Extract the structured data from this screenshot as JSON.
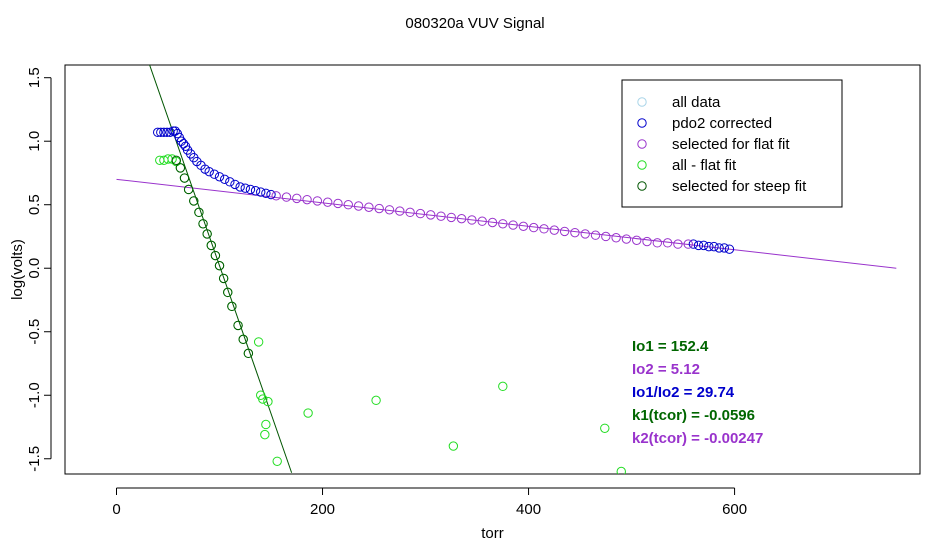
{
  "chart_data": {
    "type": "scatter",
    "title": "080320a   VUV Signal",
    "xlabel": "torr",
    "ylabel": "log(volts)",
    "xlim": [
      -50,
      780
    ],
    "ylim": [
      -1.62,
      1.6
    ],
    "xticks": [
      0,
      200,
      400,
      600
    ],
    "yticks": [
      -1.5,
      -1.0,
      -0.5,
      0.0,
      0.5,
      1.0,
      1.5
    ],
    "ytick_labels": [
      "-1.5",
      "-1.0",
      "-0.5",
      "0.0",
      "0.5",
      "1.0",
      "1.5"
    ],
    "legend_position": "top-right",
    "series": [
      {
        "name": "all data",
        "color": "#a8d4e8",
        "points": []
      },
      {
        "name": "pdo2 corrected",
        "color": "#0000cc",
        "points": [
          [
            40,
            1.07
          ],
          [
            43,
            1.07
          ],
          [
            46,
            1.07
          ],
          [
            49,
            1.07
          ],
          [
            52,
            1.07
          ],
          [
            55,
            1.08
          ],
          [
            57,
            1.08
          ],
          [
            59,
            1.06
          ],
          [
            61,
            1.03
          ],
          [
            63,
            1.0
          ],
          [
            65,
            0.98
          ],
          [
            67,
            0.96
          ],
          [
            69,
            0.93
          ],
          [
            72,
            0.9
          ],
          [
            75,
            0.87
          ],
          [
            78,
            0.84
          ],
          [
            82,
            0.81
          ],
          [
            86,
            0.78
          ],
          [
            90,
            0.76
          ],
          [
            95,
            0.74
          ],
          [
            100,
            0.72
          ],
          [
            105,
            0.7
          ],
          [
            110,
            0.68
          ],
          [
            115,
            0.66
          ],
          [
            120,
            0.64
          ],
          [
            125,
            0.63
          ],
          [
            130,
            0.62
          ],
          [
            135,
            0.61
          ],
          [
            140,
            0.6
          ],
          [
            145,
            0.59
          ],
          [
            150,
            0.58
          ],
          [
            560,
            0.19
          ],
          [
            565,
            0.18
          ],
          [
            570,
            0.18
          ],
          [
            575,
            0.17
          ],
          [
            580,
            0.17
          ],
          [
            585,
            0.16
          ],
          [
            590,
            0.16
          ],
          [
            595,
            0.15
          ]
        ]
      },
      {
        "name": "selected for flat fit",
        "color": "#9933cc",
        "points": [
          [
            155,
            0.57
          ],
          [
            165,
            0.56
          ],
          [
            175,
            0.55
          ],
          [
            185,
            0.54
          ],
          [
            195,
            0.53
          ],
          [
            205,
            0.52
          ],
          [
            215,
            0.51
          ],
          [
            225,
            0.5
          ],
          [
            235,
            0.49
          ],
          [
            245,
            0.48
          ],
          [
            255,
            0.47
          ],
          [
            265,
            0.46
          ],
          [
            275,
            0.45
          ],
          [
            285,
            0.44
          ],
          [
            295,
            0.43
          ],
          [
            305,
            0.42
          ],
          [
            315,
            0.41
          ],
          [
            325,
            0.4
          ],
          [
            335,
            0.39
          ],
          [
            345,
            0.38
          ],
          [
            355,
            0.37
          ],
          [
            365,
            0.36
          ],
          [
            375,
            0.35
          ],
          [
            385,
            0.34
          ],
          [
            395,
            0.33
          ],
          [
            405,
            0.32
          ],
          [
            415,
            0.31
          ],
          [
            425,
            0.3
          ],
          [
            435,
            0.29
          ],
          [
            445,
            0.28
          ],
          [
            455,
            0.27
          ],
          [
            465,
            0.26
          ],
          [
            475,
            0.25
          ],
          [
            485,
            0.24
          ],
          [
            495,
            0.23
          ],
          [
            505,
            0.22
          ],
          [
            515,
            0.21
          ],
          [
            525,
            0.2
          ],
          [
            535,
            0.2
          ],
          [
            545,
            0.19
          ],
          [
            555,
            0.19
          ]
        ]
      },
      {
        "name": "all - flat fit",
        "color": "#22dd22",
        "points": [
          [
            42,
            0.85
          ],
          [
            46,
            0.85
          ],
          [
            50,
            0.86
          ],
          [
            54,
            0.86
          ],
          [
            58,
            0.84
          ],
          [
            62,
            0.79
          ],
          [
            66,
            0.71
          ],
          [
            70,
            0.62
          ],
          [
            75,
            0.53
          ],
          [
            80,
            0.44
          ],
          [
            84,
            0.35
          ],
          [
            88,
            0.27
          ],
          [
            92,
            0.18
          ],
          [
            96,
            0.1
          ],
          [
            100,
            0.02
          ],
          [
            104,
            -0.08
          ],
          [
            108,
            -0.19
          ],
          [
            112,
            -0.3
          ],
          [
            118,
            -0.45
          ],
          [
            123,
            -0.56
          ],
          [
            128,
            -0.67
          ],
          [
            138,
            -0.58
          ],
          [
            140,
            -1.0
          ],
          [
            142,
            -1.03
          ],
          [
            147,
            -1.05
          ],
          [
            145,
            -1.23
          ],
          [
            144,
            -1.31
          ],
          [
            156,
            -1.52
          ],
          [
            186,
            -1.14
          ],
          [
            252,
            -1.04
          ],
          [
            327,
            -1.4
          ],
          [
            375,
            -0.93
          ],
          [
            474,
            -1.26
          ],
          [
            490,
            -1.6
          ]
        ]
      },
      {
        "name": "selected for steep fit",
        "color": "#005500",
        "points": [
          [
            58,
            0.85
          ],
          [
            62,
            0.79
          ],
          [
            66,
            0.71
          ],
          [
            70,
            0.62
          ],
          [
            75,
            0.53
          ],
          [
            80,
            0.44
          ],
          [
            84,
            0.35
          ],
          [
            88,
            0.27
          ],
          [
            92,
            0.18
          ],
          [
            96,
            0.1
          ],
          [
            100,
            0.02
          ],
          [
            104,
            -0.08
          ],
          [
            108,
            -0.19
          ],
          [
            112,
            -0.3
          ],
          [
            118,
            -0.45
          ],
          [
            123,
            -0.56
          ],
          [
            128,
            -0.67
          ]
        ]
      }
    ],
    "fit_lines": [
      {
        "name": "steep fit line",
        "color": "#005500",
        "x": [
          30,
          170
        ],
        "y": [
          1.65,
          -1.61
        ]
      },
      {
        "name": "flat fit line",
        "color": "#9933cc",
        "x": [
          0,
          757
        ],
        "y": [
          0.7,
          0.0
        ]
      }
    ],
    "annotations": [
      {
        "text": "Io1 =  152.4",
        "color": "#006600"
      },
      {
        "text": "Io2 =  5.12",
        "color": "#9933cc"
      },
      {
        "text": "Io1/Io2 =  29.74",
        "color": "#0000cc"
      },
      {
        "text": "k1(tcor) =  -0.0596",
        "color": "#006600"
      },
      {
        "text": "k2(tcor) =  -0.00247",
        "color": "#9933cc"
      }
    ]
  }
}
